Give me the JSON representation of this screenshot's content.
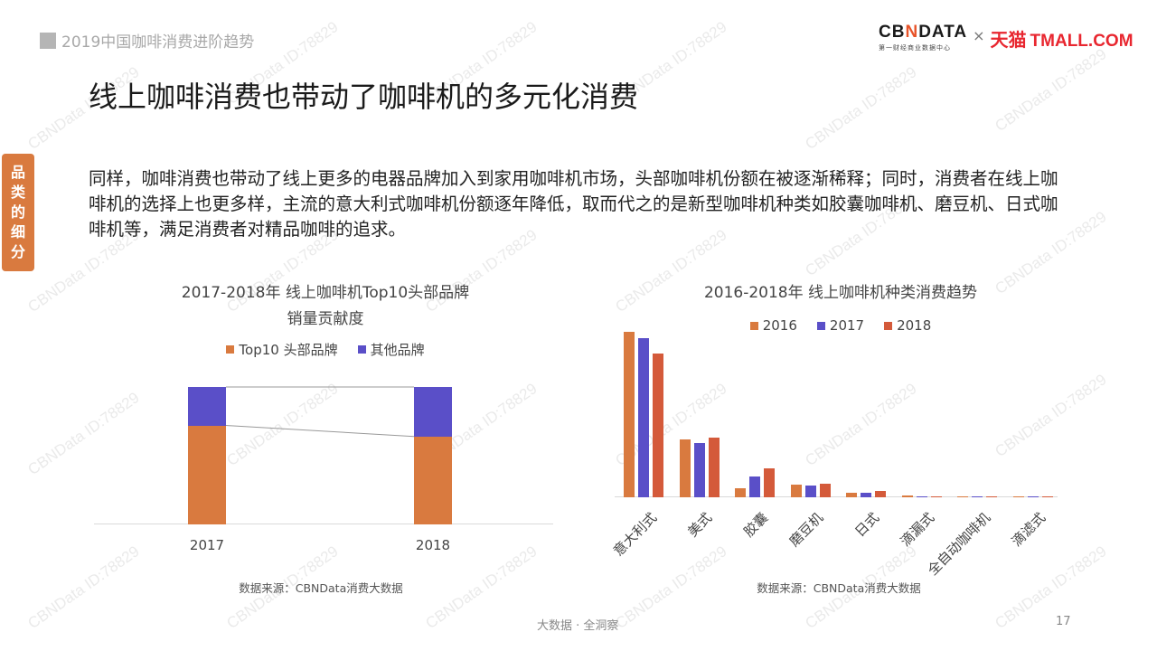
{
  "header": {
    "section_title": "2019中国咖啡消费进阶趋势",
    "logo_cbn": "CBNDATA",
    "logo_cbn_sub": "第一财经商业数据中心",
    "logo_times": "×",
    "logo_tmall_cn": "天猫",
    "logo_tmall_en": "TMALL.COM"
  },
  "side_tab": {
    "chars": [
      "品",
      "类",
      "的",
      "细",
      "分"
    ]
  },
  "page_title": "线上咖啡消费也带动了咖啡机的多元化消费",
  "body_text": "同样，咖啡消费也带动了线上更多的电器品牌加入到家用咖啡机市场，头部咖啡机份额在被逐渐稀释；同时，消费者在线上咖啡机的选择上也更多样，主流的意大利式咖啡机份额逐年降低，取而代之的是新型咖啡机种类如胶囊咖啡机、磨豆机、日式咖啡机等，满足消费者对精品咖啡的追求。",
  "colors": {
    "orange": "#d97a3f",
    "purple": "#5a4fc8",
    "red": "#d45a3a",
    "side_tab": "#d97a3f"
  },
  "chart_data": [
    {
      "type": "bar",
      "stacked": true,
      "percent_stacked": true,
      "title": "2017-2018年 线上咖啡机Top10头部品牌",
      "subtitle": "销量贡献度",
      "categories": [
        "2017",
        "2018"
      ],
      "series": [
        {
          "name": "Top10 头部品牌",
          "color": "#d97a3f",
          "values": [
            72,
            64
          ]
        },
        {
          "name": "其他品牌",
          "color": "#5a4fc8",
          "values": [
            28,
            36
          ]
        }
      ],
      "xlabel": "",
      "ylabel": "",
      "ylim": [
        0,
        100
      ],
      "grid": false,
      "legend_position": "top",
      "source": "数据来源：CBNData消费大数据"
    },
    {
      "type": "bar",
      "title": "2016-2018年 线上咖啡机种类消费趋势",
      "categories": [
        "意大利式",
        "美式",
        "胶囊",
        "磨豆机",
        "日式",
        "滴漏式",
        "全自动咖啡机",
        "滴滤式"
      ],
      "series": [
        {
          "name": "2016",
          "color": "#d97a3f",
          "values": [
            100,
            35,
            5.5,
            7.7,
            2.7,
            1.1,
            0.8,
            0.8
          ]
        },
        {
          "name": "2017",
          "color": "#5a4fc8",
          "values": [
            96,
            33,
            12.5,
            7.1,
            2.7,
            0.5,
            0.8,
            0.3
          ]
        },
        {
          "name": "2018",
          "color": "#d45a3a",
          "values": [
            87,
            36,
            17.5,
            8.2,
            3.8,
            0.5,
            0.4,
            0.2
          ]
        }
      ],
      "xlabel": "",
      "ylabel": "",
      "ylim": [
        0,
        100
      ],
      "grid": false,
      "legend_position": "top",
      "note": "relative index, values unlabeled on chart",
      "source": "数据来源：CBNData消费大数据"
    }
  ],
  "left_chart": {
    "title_line1": "2017-2018年 线上咖啡机Top10头部品牌",
    "title_line2": "销量贡献度",
    "legend": [
      "Top10 头部品牌",
      "其他品牌"
    ],
    "x_labels": [
      "2017",
      "2018"
    ],
    "source": "数据来源：CBNData消费大数据"
  },
  "right_chart": {
    "title": "2016-2018年 线上咖啡机种类消费趋势",
    "legend": [
      "2016",
      "2017",
      "2018"
    ],
    "x_labels": [
      "意大利式",
      "美式",
      "胶囊",
      "磨豆机",
      "日式",
      "滴漏式",
      "全自动咖啡机",
      "滴滤式"
    ],
    "source": "数据来源：CBNData消费大数据"
  },
  "footer": {
    "slogan": "大数据 · 全洞察",
    "page_number": "17"
  },
  "watermark": "CBNData ID:78829"
}
